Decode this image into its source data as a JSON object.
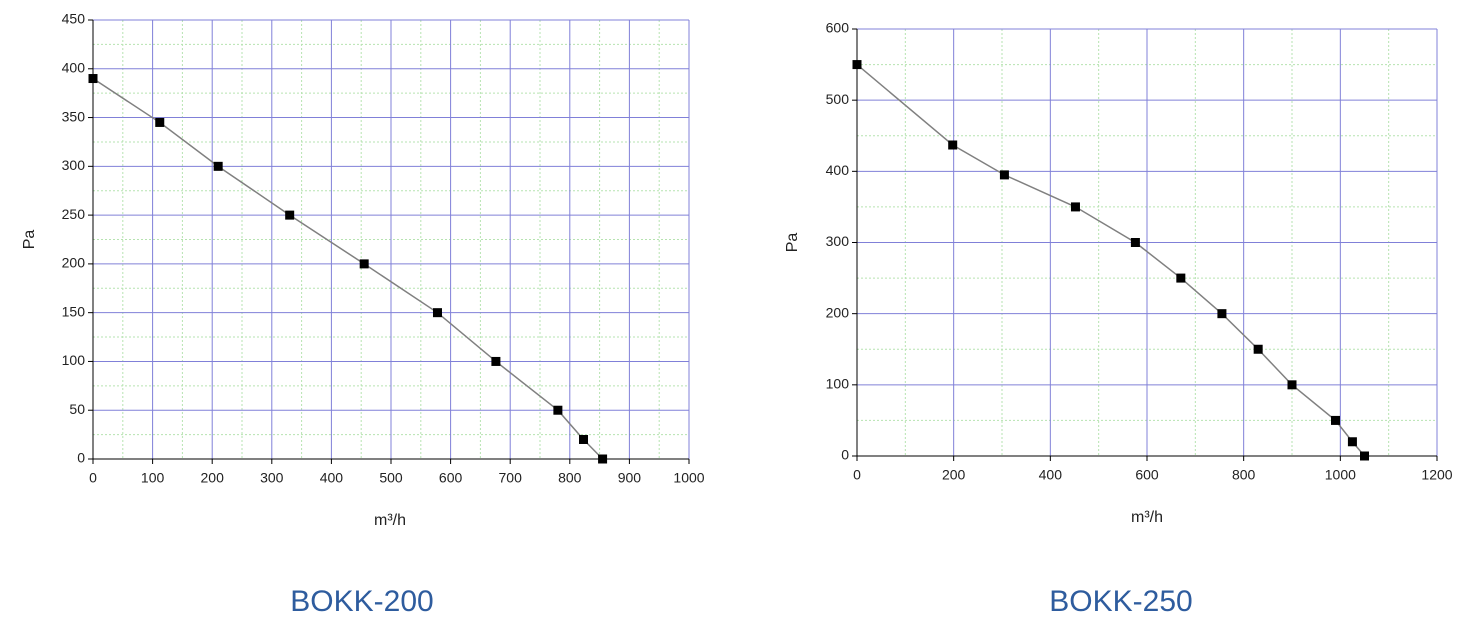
{
  "chart_data": [
    {
      "type": "line",
      "title": "BOKK-200",
      "x_label": "m³/h",
      "y_label": "Pa",
      "x": [
        0,
        112,
        210,
        330,
        455,
        578,
        676,
        780,
        823,
        855
      ],
      "values": [
        390,
        345,
        300,
        250,
        200,
        150,
        100,
        50,
        20,
        0
      ],
      "color": "#808080",
      "marker_color": "#000000",
      "grid": true,
      "xlim": [
        0,
        1000
      ],
      "xticks": [
        0,
        100,
        200,
        300,
        400,
        500,
        600,
        700,
        800,
        900,
        1000
      ],
      "ylim": [
        0,
        450
      ],
      "yticks": [
        0,
        50,
        100,
        150,
        200,
        250,
        300,
        350,
        400,
        450
      ]
    },
    {
      "type": "line",
      "title": "BOKK-250",
      "x_label": "m³/h",
      "y_label": "Pa",
      "x": [
        0,
        198,
        305,
        452,
        576,
        670,
        755,
        830,
        900,
        990,
        1025,
        1050
      ],
      "values": [
        550,
        437,
        395,
        350,
        300,
        250,
        200,
        150,
        100,
        50,
        20,
        0
      ],
      "color": "#808080",
      "marker_color": "#000000",
      "grid": true,
      "xlim": [
        0,
        1200
      ],
      "xticks": [
        0,
        200,
        400,
        600,
        800,
        1000,
        1200
      ],
      "ylim": [
        0,
        600
      ],
      "yticks": [
        0,
        100,
        200,
        300,
        400,
        500,
        600
      ]
    }
  ]
}
